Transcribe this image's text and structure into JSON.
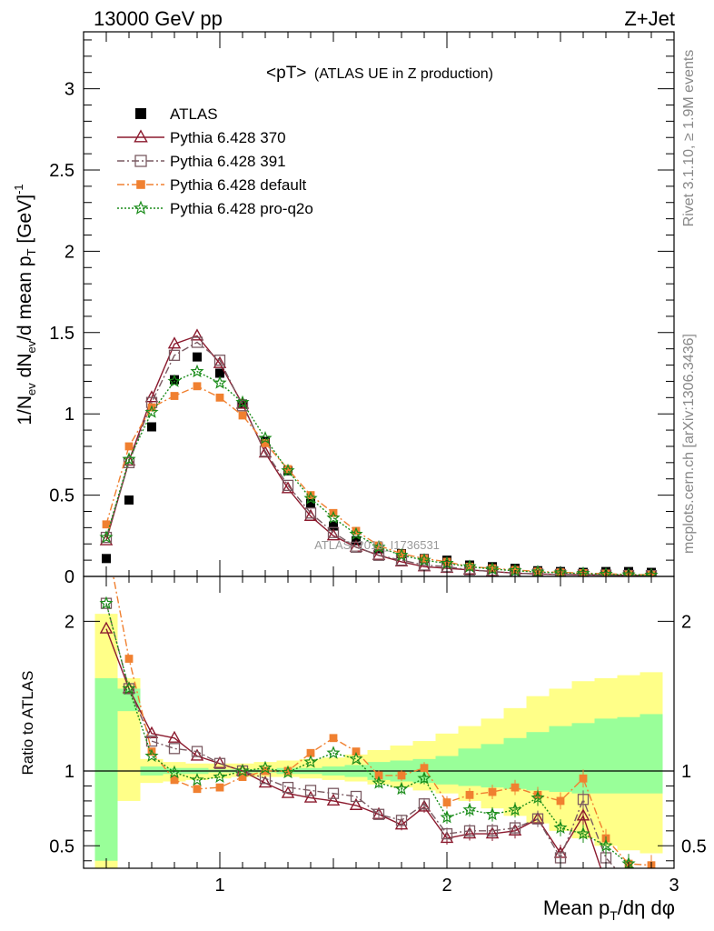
{
  "header": {
    "left": "13000 GeV pp",
    "right": "Z+Jet"
  },
  "plot_title": {
    "main": "<pT>",
    "sub": "(ATLAS UE in Z production)"
  },
  "watermark": "ATLAS_2019_I1736531",
  "side_text": {
    "rivet": "Rivet 3.1.10, ≥ 1.9M events",
    "mcplots": "mcplots.cern.ch [arXiv:1306.3436]"
  },
  "axes": {
    "xlabel": "Mean p_T/dη dφ",
    "ylabel_top": "1/N_ev dN_ev/d mean p_T [GeV]^-1",
    "ylabel_bottom": "Ratio to ATLAS",
    "xlim": [
      0.4,
      3.0
    ],
    "xticks": [
      "1",
      "2",
      "3"
    ],
    "top_ylim": [
      0,
      3.35
    ],
    "top_yticks": [
      "0",
      "0.5",
      "1",
      "1.5",
      "2",
      "2.5",
      "3"
    ],
    "bottom_ylim": [
      0.35,
      2.3
    ],
    "bottom_yticks": [
      "0.5",
      "1",
      "2"
    ]
  },
  "chart_data": {
    "type": "scatter",
    "x": [
      0.5,
      0.6,
      0.7,
      0.8,
      0.9,
      1.0,
      1.1,
      1.2,
      1.3,
      1.4,
      1.5,
      1.6,
      1.7,
      1.8,
      1.9,
      2.0,
      2.1,
      2.2,
      2.3,
      2.4,
      2.5,
      2.6,
      2.7,
      2.8,
      2.9
    ],
    "series": [
      {
        "name": "ATLAS",
        "color": "#000000",
        "marker": "square-filled",
        "values": [
          0.11,
          0.47,
          0.92,
          1.21,
          1.35,
          1.25,
          1.06,
          0.83,
          0.65,
          0.45,
          0.31,
          0.22,
          0.17,
          0.14,
          0.11,
          0.1,
          0.07,
          0.06,
          0.05,
          0.035,
          0.03,
          0.025,
          0.03,
          0.03,
          0.025
        ]
      },
      {
        "name": "Pythia 6.428 370",
        "color": "#8b1a2e",
        "marker": "triangle-open",
        "line": "solid",
        "values": [
          0.22,
          0.71,
          1.1,
          1.43,
          1.48,
          1.31,
          1.06,
          0.76,
          0.54,
          0.37,
          0.25,
          0.18,
          0.13,
          0.09,
          0.06,
          0.05,
          0.04,
          0.03,
          0.02,
          0.015,
          0.012,
          0.01,
          0.008,
          0.006,
          0.005
        ],
        "ratio": [
          1.95,
          1.55,
          1.25,
          1.22,
          1.1,
          1.05,
          1.0,
          0.92,
          0.85,
          0.82,
          0.8,
          0.77,
          0.71,
          0.64,
          0.76,
          0.55,
          0.58,
          0.58,
          0.6,
          0.68,
          0.45,
          0.7,
          0.25,
          0.25,
          0.25
        ]
      },
      {
        "name": "Pythia 6.428 391",
        "color": "#7a5a62",
        "marker": "square-open",
        "line": "dashdot",
        "values": [
          0.24,
          0.7,
          1.07,
          1.36,
          1.44,
          1.33,
          1.05,
          0.77,
          0.56,
          0.39,
          0.27,
          0.18,
          0.13,
          0.1,
          0.07,
          0.06,
          0.04,
          0.03,
          0.02,
          0.015,
          0.012,
          0.01,
          0.008,
          0.006,
          0.005
        ],
        "ratio": [
          2.12,
          1.55,
          1.2,
          1.15,
          1.13,
          1.05,
          1.0,
          0.95,
          0.89,
          0.87,
          0.85,
          0.83,
          0.71,
          0.67,
          0.78,
          0.58,
          0.6,
          0.6,
          0.62,
          0.68,
          0.42,
          0.81,
          0.42,
          0.25,
          0.25
        ]
      },
      {
        "name": "Pythia 6.428 default",
        "color": "#f08030",
        "marker": "square-filled-small",
        "line": "dashdot",
        "values": [
          0.32,
          0.8,
          1.04,
          1.11,
          1.17,
          1.1,
          0.99,
          0.82,
          0.66,
          0.5,
          0.39,
          0.28,
          0.19,
          0.14,
          0.11,
          0.09,
          0.06,
          0.05,
          0.04,
          0.03,
          0.025,
          0.02,
          0.017,
          0.012,
          0.01
        ],
        "ratio": [
          2.55,
          1.75,
          1.13,
          0.94,
          0.88,
          0.89,
          0.96,
          1.0,
          1.0,
          1.12,
          1.22,
          1.13,
          0.97,
          0.97,
          1.02,
          0.79,
          0.84,
          0.86,
          0.89,
          0.84,
          0.8,
          0.95,
          0.55,
          0.38,
          0.37
        ]
      },
      {
        "name": "Pythia 6.428 pro-q2o",
        "color": "#1a8c1a",
        "marker": "star-open",
        "line": "dotted",
        "values": [
          0.24,
          0.72,
          1.01,
          1.2,
          1.26,
          1.19,
          1.07,
          0.85,
          0.65,
          0.48,
          0.36,
          0.26,
          0.18,
          0.13,
          0.1,
          0.08,
          0.06,
          0.045,
          0.035,
          0.027,
          0.022,
          0.018,
          0.013,
          0.01,
          0.008
        ],
        "ratio": [
          2.12,
          1.55,
          1.1,
          0.99,
          0.94,
          0.96,
          1.0,
          1.02,
          0.99,
          1.06,
          1.12,
          1.08,
          0.92,
          0.88,
          0.95,
          0.69,
          0.74,
          0.71,
          0.74,
          0.82,
          0.62,
          0.58,
          0.5,
          0.38,
          0.25
        ]
      }
    ],
    "uncertainty_bands": {
      "bin_edges": [
        0.45,
        0.55,
        0.65,
        0.75,
        0.85,
        0.95,
        1.05,
        1.15,
        1.25,
        1.35,
        1.45,
        1.55,
        1.65,
        1.75,
        1.85,
        1.95,
        2.05,
        2.15,
        2.25,
        2.35,
        2.45,
        2.55,
        2.65,
        2.75,
        2.85,
        2.95
      ],
      "stat_low": [
        0.4,
        1.4,
        0.97,
        0.98,
        0.98,
        0.99,
        0.99,
        0.99,
        0.98,
        0.98,
        0.97,
        0.96,
        0.94,
        0.93,
        0.92,
        0.91,
        0.9,
        0.89,
        0.88,
        0.87,
        0.86,
        0.85,
        0.85,
        0.85,
        0.85
      ],
      "stat_high": [
        1.62,
        1.55,
        1.03,
        1.02,
        1.02,
        1.01,
        1.01,
        1.01,
        1.02,
        1.02,
        1.03,
        1.04,
        1.06,
        1.07,
        1.08,
        1.1,
        1.15,
        1.18,
        1.22,
        1.26,
        1.3,
        1.32,
        1.35,
        1.36,
        1.38
      ],
      "total_low": [
        0.35,
        0.8,
        0.92,
        0.93,
        0.94,
        0.95,
        0.96,
        0.96,
        0.96,
        0.95,
        0.94,
        0.93,
        0.91,
        0.89,
        0.87,
        0.85,
        0.8,
        0.75,
        0.7,
        0.65,
        0.6,
        0.55,
        0.5,
        0.47,
        0.45
      ],
      "total_high": [
        2.05,
        1.62,
        1.08,
        1.06,
        1.05,
        1.05,
        1.05,
        1.06,
        1.07,
        1.08,
        1.09,
        1.11,
        1.14,
        1.17,
        1.2,
        1.25,
        1.3,
        1.35,
        1.42,
        1.5,
        1.55,
        1.6,
        1.62,
        1.64,
        1.66
      ]
    },
    "band_colors": {
      "stat": "#99ff99",
      "total": "#ffff88"
    },
    "legend_position": "top-left"
  }
}
